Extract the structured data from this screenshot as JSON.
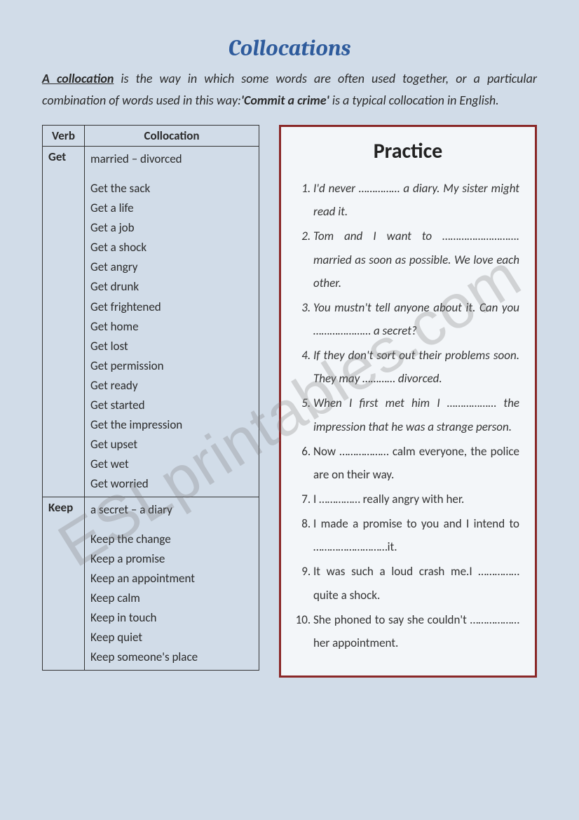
{
  "title": "Collocations",
  "intro": {
    "term": "A collocation",
    "rest1": " is the way in which some words are often used together, or a particular combination of words used in this way:",
    "example": "'Commit a crime'",
    "rest2": " is a typical collocation in English."
  },
  "table": {
    "head_verb": "Verb",
    "head_coll": "Collocation",
    "rows": [
      {
        "verb": "Get",
        "first": "married – divorced",
        "items": [
          "Get the sack",
          " Get a life",
          " Get a job",
          " Get a shock",
          " Get angry",
          "Get drunk",
          " Get frightened",
          " Get home",
          " Get lost",
          "  Get permission",
          " Get ready",
          " Get started",
          " Get the impression",
          " Get upset",
          " Get wet",
          " Get worried"
        ]
      },
      {
        "verb": "Keep",
        "first": "a secret – a diary",
        "items": [
          "Keep the change",
          "Keep a promise",
          "Keep an appointment",
          " Keep calm",
          " Keep in touch",
          " Keep quiet",
          " Keep someone's place"
        ]
      }
    ]
  },
  "practice": {
    "title": "Practice",
    "items": [
      {
        "text": "I'd never …………… a diary. My sister might read it.",
        "italic": true
      },
      {
        "text": "Tom and I want to ………………………. married as soon as possible. We love each other.",
        "italic": true
      },
      {
        "text": "You mustn't tell anyone about it. Can you ………………… a secret?",
        "italic": true
      },
      {
        "text": "If they don't sort out their problems soon. They may ………… divorced.",
        "italic": true
      },
      {
        "text": "When I first met him I ……………… the impression that he was a strange person.",
        "italic": true
      },
      {
        "text": "Now ………………  calm everyone, the police are on their way.",
        "italic": false
      },
      {
        "text": "I …………… really angry with her.",
        "italic": false
      },
      {
        "text": "I made a promise to you and I intend to ………………………it.",
        "italic": false
      },
      {
        "text": "It was such a loud crash me.I …………… quite a shock.",
        "italic": false
      },
      {
        "text": "She phoned to say she couldn't ……………… her appointment.",
        "italic": false
      }
    ]
  },
  "watermark": "ESLprintables.com",
  "colors": {
    "page_bg": "#d1dce8",
    "title_color": "#2e5b9c",
    "text_color": "#2a2a2a",
    "border_color": "#333333",
    "practice_border": "#8a2828",
    "practice_bg": "#f3f6f9",
    "watermark_color": "rgba(120,120,120,0.28)"
  }
}
